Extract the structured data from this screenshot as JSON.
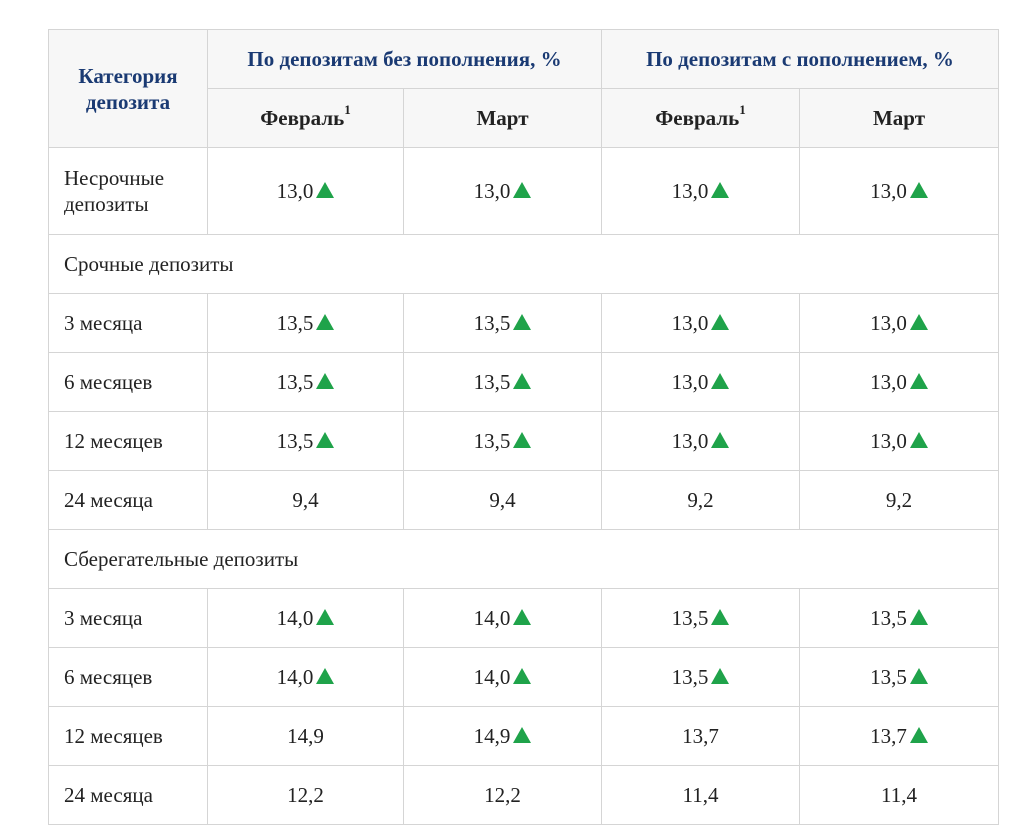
{
  "header": {
    "category_label": "Категория депозита",
    "group_without": "По депозитам без пополнения, %",
    "group_with": "По депозитам с пополнением, %",
    "months": [
      {
        "name": "Февраль",
        "sup": "1"
      },
      {
        "name": "Март",
        "sup": ""
      },
      {
        "name": "Февраль",
        "sup": "1"
      },
      {
        "name": "Март",
        "sup": ""
      }
    ]
  },
  "rows": [
    {
      "label": "Несрочные депозиты",
      "values": [
        {
          "v": "13,0",
          "up": true
        },
        {
          "v": "13,0",
          "up": true
        },
        {
          "v": "13,0",
          "up": true
        },
        {
          "v": "13,0",
          "up": true
        }
      ]
    },
    {
      "section": "Срочные депозиты"
    },
    {
      "label": "3 месяца",
      "values": [
        {
          "v": "13,5",
          "up": true
        },
        {
          "v": "13,5",
          "up": true
        },
        {
          "v": "13,0",
          "up": true
        },
        {
          "v": "13,0",
          "up": true
        }
      ]
    },
    {
      "label": "6 месяцев",
      "values": [
        {
          "v": "13,5",
          "up": true
        },
        {
          "v": "13,5",
          "up": true
        },
        {
          "v": "13,0",
          "up": true
        },
        {
          "v": "13,0",
          "up": true
        }
      ]
    },
    {
      "label": "12 месяцев",
      "values": [
        {
          "v": "13,5",
          "up": true
        },
        {
          "v": "13,5",
          "up": true
        },
        {
          "v": "13,0",
          "up": true
        },
        {
          "v": "13,0",
          "up": true
        }
      ]
    },
    {
      "label": "24 месяца",
      "values": [
        {
          "v": "9,4",
          "up": false
        },
        {
          "v": "9,4",
          "up": false
        },
        {
          "v": "9,2",
          "up": false
        },
        {
          "v": "9,2",
          "up": false
        }
      ]
    },
    {
      "section": "Сберегательные депозиты"
    },
    {
      "label": "3 месяца",
      "values": [
        {
          "v": "14,0",
          "up": true
        },
        {
          "v": "14,0",
          "up": true
        },
        {
          "v": "13,5",
          "up": true
        },
        {
          "v": "13,5",
          "up": true
        }
      ]
    },
    {
      "label": "6 месяцев",
      "values": [
        {
          "v": "14,0",
          "up": true
        },
        {
          "v": "14,0",
          "up": true
        },
        {
          "v": "13,5",
          "up": true
        },
        {
          "v": "13,5",
          "up": true
        }
      ]
    },
    {
      "label": "12 месяцев",
      "values": [
        {
          "v": "14,9",
          "up": false
        },
        {
          "v": "14,9",
          "up": true
        },
        {
          "v": "13,7",
          "up": false
        },
        {
          "v": "13,7",
          "up": true
        }
      ]
    },
    {
      "label": "24 месяца",
      "values": [
        {
          "v": "12,2",
          "up": false
        },
        {
          "v": "12,2",
          "up": false
        },
        {
          "v": "11,4",
          "up": false
        },
        {
          "v": "11,4",
          "up": false
        }
      ]
    }
  ],
  "colors": {
    "header_text": "#1a3a73",
    "up_arrow": "#1fa34a",
    "border": "#d5d5d5"
  },
  "icons": {
    "increase": "triangle-up-icon"
  }
}
